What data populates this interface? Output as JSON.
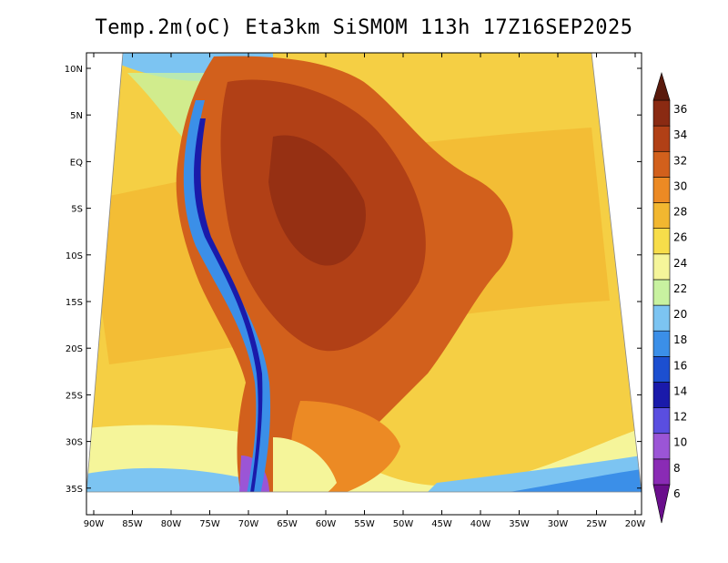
{
  "title": "Temp.2m(oC) Eta3km SiSMOM 113h 17Z16SEP2025",
  "map": {
    "lat_labels": [
      "10N",
      "5N",
      "EQ",
      "5S",
      "10S",
      "15S",
      "20S",
      "25S",
      "30S",
      "35S"
    ],
    "lon_labels": [
      "90W",
      "85W",
      "80W",
      "75W",
      "70W",
      "65W",
      "60W",
      "55W",
      "50W",
      "45W",
      "40W",
      "35W",
      "30W",
      "25W",
      "20W"
    ]
  },
  "colorbar": {
    "values": [
      "6",
      "8",
      "10",
      "12",
      "14",
      "16",
      "18",
      "20",
      "22",
      "24",
      "26",
      "28",
      "30",
      "32",
      "34",
      "36"
    ],
    "colors": [
      "#6a0e8c",
      "#8a2bb5",
      "#9b55d6",
      "#5a4ee0",
      "#1a1aaa",
      "#1c4fd0",
      "#3b8fe8",
      "#7cc4f2",
      "#c8f2a0",
      "#f5f59a",
      "#f7dd4a",
      "#f2b730",
      "#ec8a24",
      "#d2601c",
      "#b14016",
      "#8a2a12",
      "#6b1e0e"
    ],
    "colors_top": "#5a1a0c"
  }
}
